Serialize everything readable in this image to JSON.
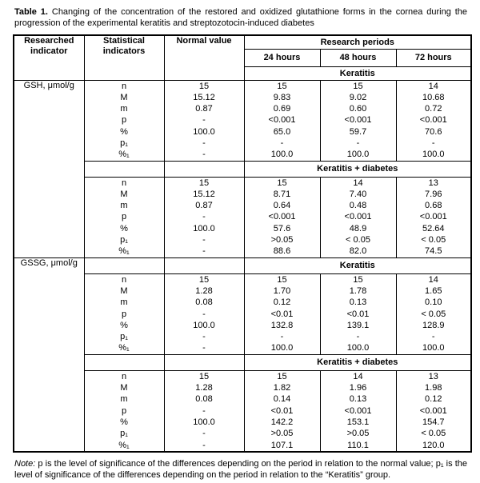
{
  "caption": {
    "label": "Table 1.",
    "text": "Changing of the concentration of the restored and oxidized glutathione forms in the cornea during the progression of the experimental keratitis and streptozotocin-induced diabetes"
  },
  "table": {
    "header": {
      "researched": "Researched\nindicator",
      "statistical": "Statistical\nindicators",
      "normal": "Normal value",
      "periods": "Research periods",
      "h24": "24 hours",
      "h48": "48 hours",
      "h72": "72 hours"
    },
    "row_labels": [
      "n",
      "M",
      "m",
      "p",
      "%",
      "p₁",
      "%₁"
    ],
    "sections": [
      {
        "indicator": "GSH, μmol/g",
        "groups": [
          {
            "name": "Keratitis",
            "normal": [
              "15",
              "15.12",
              "0.87",
              "-",
              "100.0",
              "-",
              "-"
            ],
            "h24": [
              "15",
              "9.83",
              "0.69",
              "<0.001",
              "65.0",
              "-",
              "100.0"
            ],
            "h48": [
              "15",
              "9.02",
              "0.60",
              "<0.001",
              "59.7",
              "-",
              "100.0"
            ],
            "h72": [
              "14",
              "10.68",
              "0.72",
              "<0.001",
              "70.6",
              "-",
              "100.0"
            ]
          },
          {
            "name": "Keratitis + diabetes",
            "normal": [
              "15",
              "15.12",
              "0.87",
              "-",
              "100.0",
              "-",
              "-"
            ],
            "h24": [
              "15",
              "8.71",
              "0.64",
              "<0.001",
              "57.6",
              ">0.05",
              "88.6"
            ],
            "h48": [
              "14",
              "7.40",
              "0.48",
              "<0.001",
              "48.9",
              "< 0.05",
              "82.0"
            ],
            "h72": [
              "13",
              "7.96",
              "0.68",
              "<0.001",
              "52.64",
              "< 0.05",
              "74.5"
            ]
          }
        ]
      },
      {
        "indicator": "GSSG, μmol/g",
        "groups": [
          {
            "name": "Keratitis",
            "normal": [
              "15",
              "1.28",
              "0.08",
              "-",
              "100.0",
              "-",
              "-"
            ],
            "h24": [
              "15",
              "1.70",
              "0.12",
              "<0.01",
              "132.8",
              "-",
              "100.0"
            ],
            "h48": [
              "15",
              "1.78",
              "0.13",
              "<0.01",
              "139.1",
              "-",
              "100.0"
            ],
            "h72": [
              "14",
              "1.65",
              "0.10",
              "< 0.05",
              "128.9",
              "-",
              "100.0"
            ]
          },
          {
            "name": "Keratitis + diabetes",
            "normal": [
              "15",
              "1.28",
              "0.08",
              "-",
              "100.0",
              "-",
              "-"
            ],
            "h24": [
              "15",
              "1.82",
              "0.14",
              "<0.01",
              "142.2",
              ">0.05",
              "107.1"
            ],
            "h48": [
              "14",
              "1.96",
              "0.13",
              "<0.001",
              "153.1",
              ">0.05",
              "110.1"
            ],
            "h72": [
              "13",
              "1.98",
              "0.12",
              "<0.001",
              "154.7",
              "< 0.05",
              "120.0"
            ]
          }
        ]
      }
    ]
  },
  "note": {
    "label": "Note:",
    "text": "p is the level of significance of the differences depending on the period in relation to the normal value; p₁ is the level of significance of the differences depending on the period in relation to the “Keratitis” group."
  }
}
